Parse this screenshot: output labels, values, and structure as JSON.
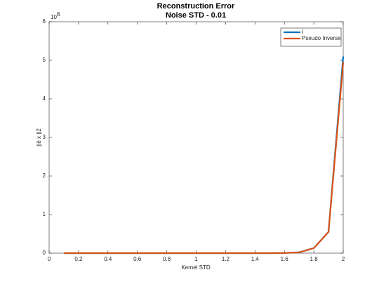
{
  "chart_data": {
    "type": "line",
    "title": "Reconstruction Error",
    "subtitle": "Noise STD - 0.01",
    "x_label": "Kernel STD",
    "y_label": "||ê  x ||2",
    "y_multiplier": {
      "base": "10",
      "exponent": "6"
    },
    "x": [
      0.1,
      0.2,
      0.3,
      0.4,
      0.5,
      0.6,
      0.7,
      0.8,
      0.9,
      1.0,
      1.1,
      1.2,
      1.3,
      1.4,
      1.5,
      1.6,
      1.7,
      1.8,
      1.9,
      2.0
    ],
    "series": [
      {
        "name": "I",
        "color": "#0072bd",
        "values": [
          0,
          0,
          0,
          0,
          0,
          0,
          0,
          0,
          0,
          0,
          0,
          0,
          0,
          0,
          0,
          0.005,
          0.02,
          0.13,
          0.55,
          5.1
        ]
      },
      {
        "name": "Pseudo Inverse",
        "color": "#d95319",
        "values": [
          0,
          0,
          0,
          0,
          0,
          0,
          0,
          0,
          0,
          0,
          0,
          0,
          0,
          0,
          0,
          0.005,
          0.02,
          0.13,
          0.55,
          4.95
        ]
      }
    ],
    "xlim": [
      0,
      2
    ],
    "xticks": [
      0,
      0.2,
      0.4,
      0.6,
      0.8,
      1,
      1.2,
      1.4,
      1.6,
      1.8,
      2
    ],
    "ylim": [
      0,
      6
    ],
    "yticks": [
      0,
      1,
      2,
      3,
      4,
      5,
      6
    ],
    "grid": false,
    "legend": "northeast"
  }
}
